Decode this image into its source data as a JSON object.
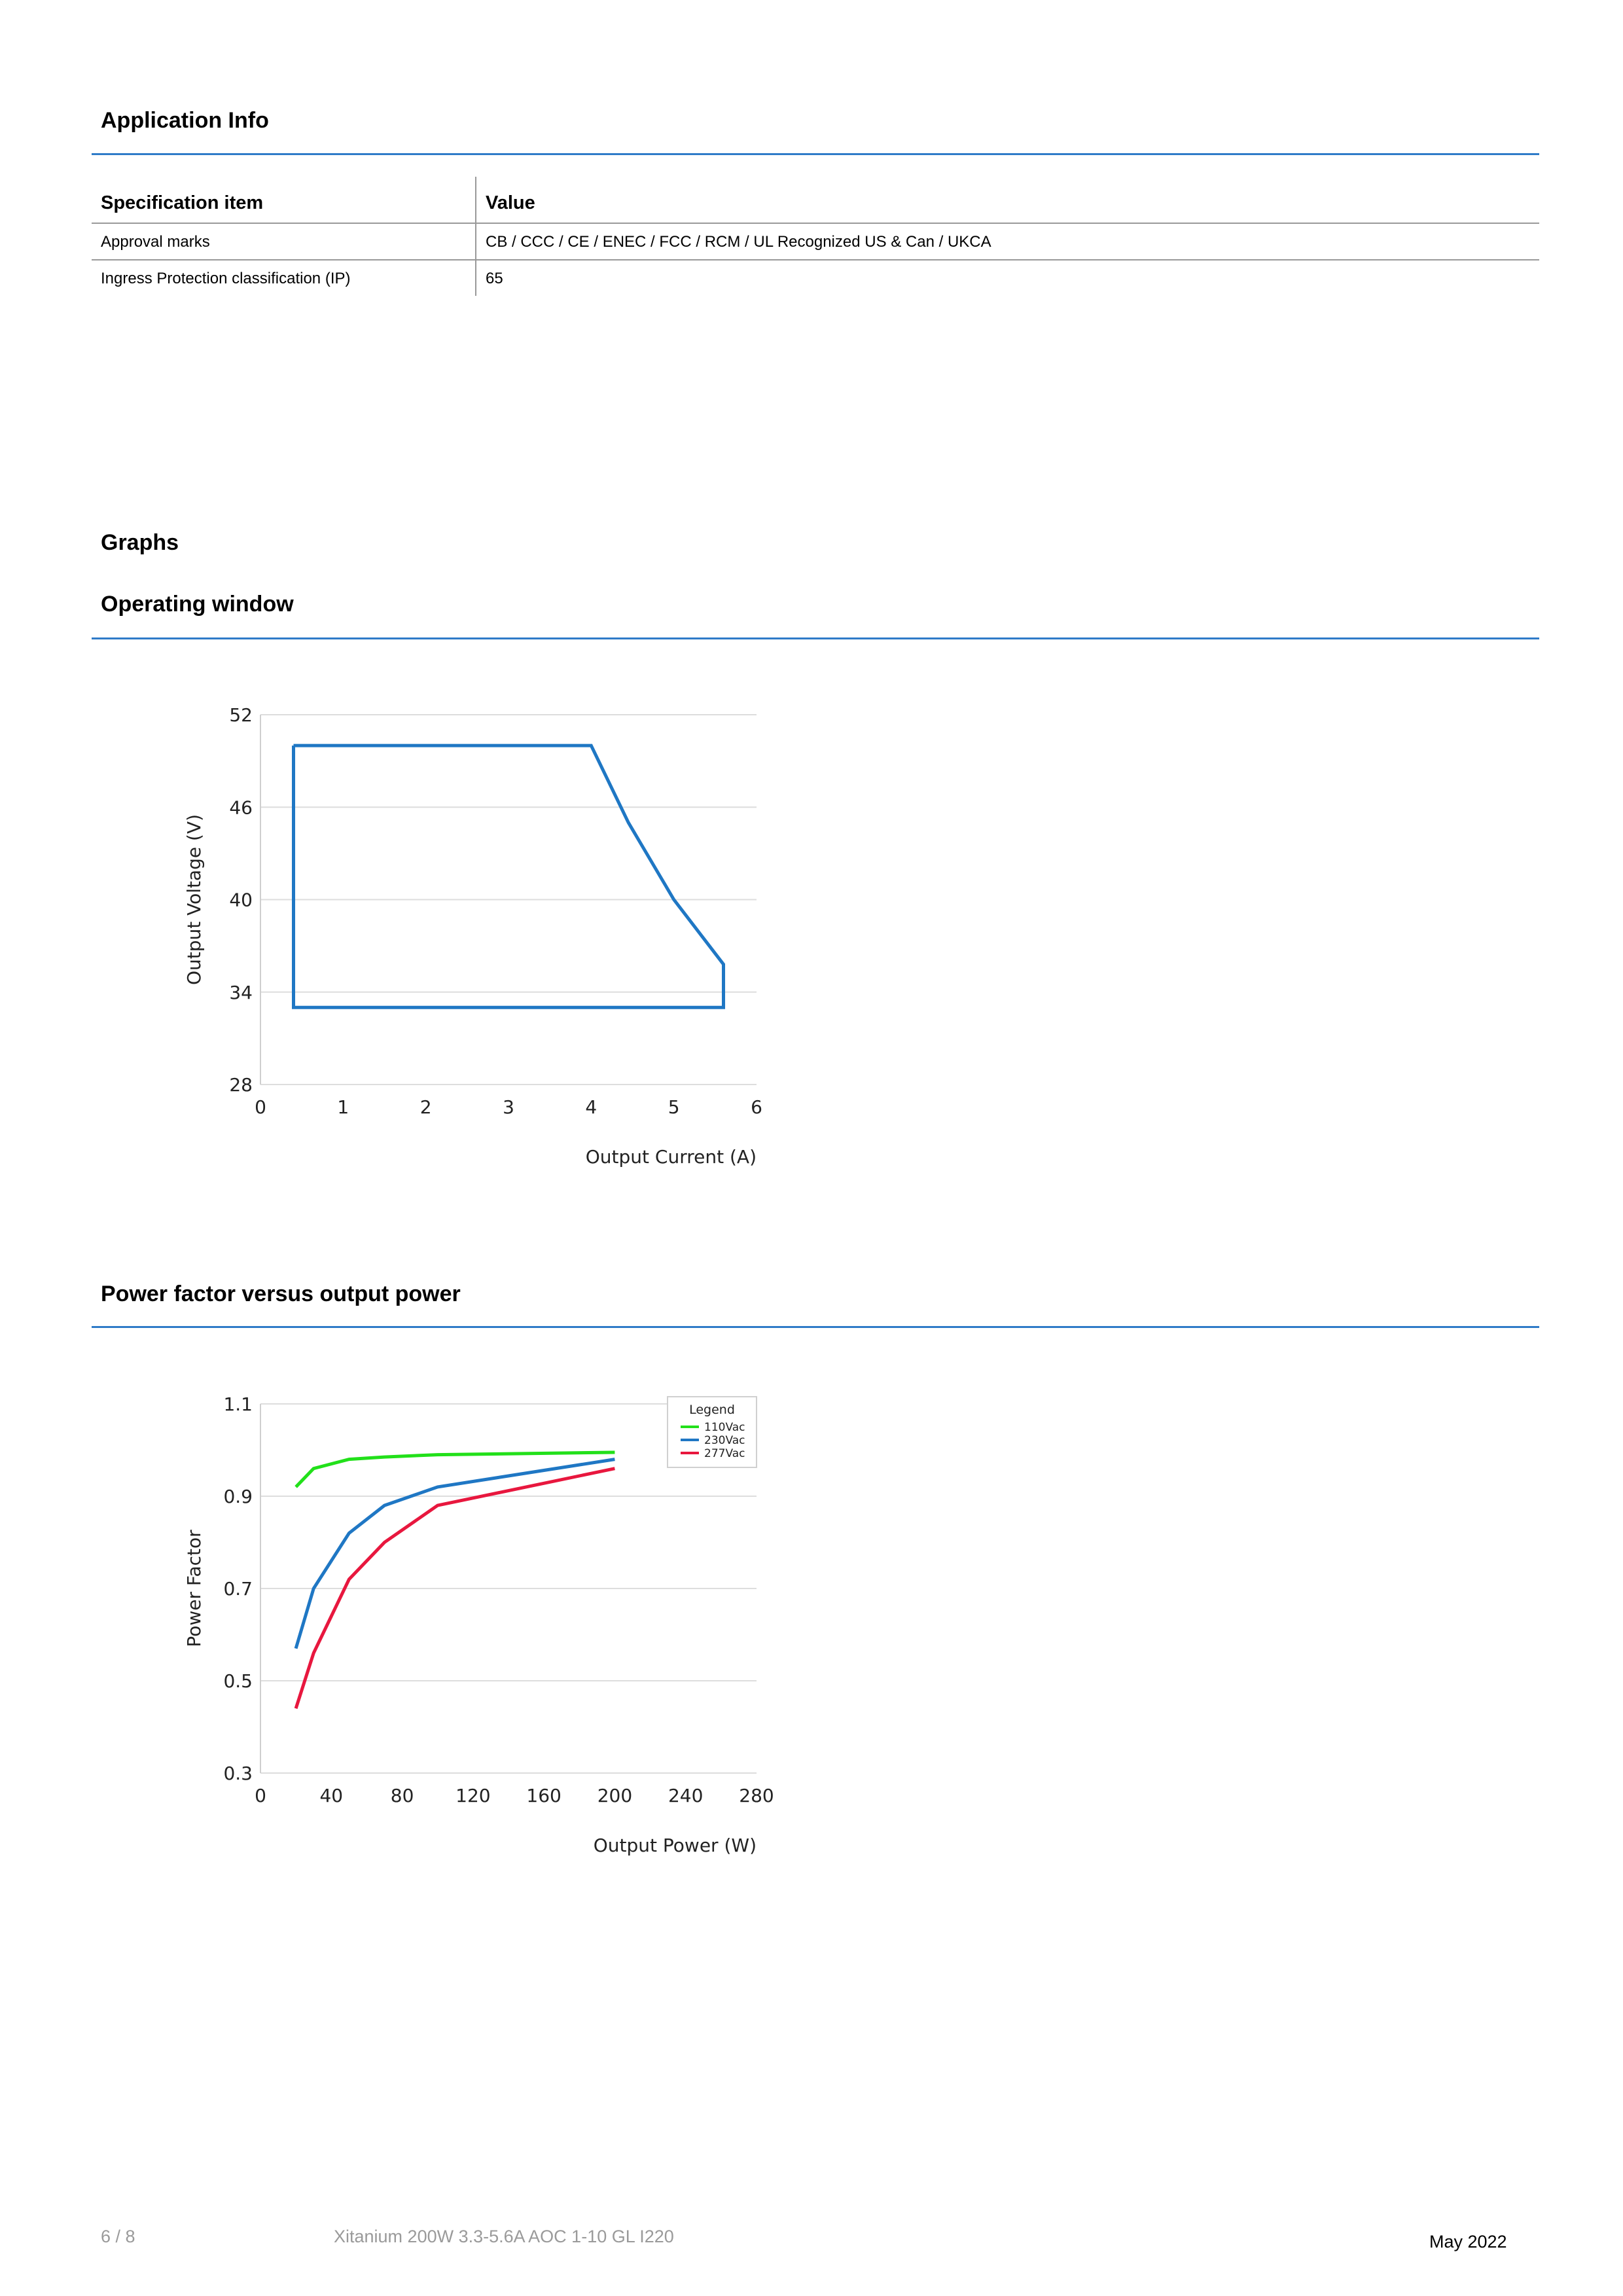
{
  "sections": {
    "application_info": "Application Info",
    "graphs": "Graphs",
    "operating_window": "Operating window",
    "power_factor": "Power factor versus output power"
  },
  "spec_table": {
    "headers": [
      "Specification item",
      "Value"
    ],
    "rows": [
      [
        "Approval marks",
        "CB / CCC / CE / ENEC / FCC / RCM / UL Recognized US & Can / UKCA"
      ],
      [
        "Ingress Protection classification (IP)",
        "65"
      ]
    ]
  },
  "chart_data": [
    {
      "type": "line",
      "title": "",
      "xlabel": "Output Current (A)",
      "ylabel": "Output Voltage (V)",
      "xlim": [
        0,
        6
      ],
      "ylim": [
        28,
        52
      ],
      "xticks": [
        0,
        1,
        2,
        3,
        4,
        5,
        6
      ],
      "yticks": [
        28,
        34,
        40,
        46,
        52
      ],
      "grid": true,
      "series": [
        {
          "color": "#1f77c4",
          "x": [
            0.4,
            4.0,
            4.45,
            5.0,
            5.6,
            5.6,
            0.4,
            0.4
          ],
          "y": [
            50,
            50,
            45,
            40,
            35.8,
            33,
            33,
            50
          ]
        }
      ]
    },
    {
      "type": "line",
      "title": "",
      "xlabel": "Output Power (W)",
      "ylabel": "Power Factor",
      "xlim": [
        0,
        280
      ],
      "ylim": [
        0.3,
        1.1
      ],
      "xticks": [
        0,
        40,
        80,
        120,
        160,
        200,
        240,
        280
      ],
      "yticks": [
        0.3,
        0.5,
        0.7,
        0.9,
        1.1
      ],
      "grid": true,
      "legend_title": "Legend",
      "legend_position": "top-right",
      "series": [
        {
          "name": "110Vac",
          "color": "#22e01a",
          "x": [
            20,
            30,
            50,
            70,
            100,
            200
          ],
          "y": [
            0.92,
            0.96,
            0.98,
            0.985,
            0.99,
            0.995
          ]
        },
        {
          "name": "230Vac",
          "color": "#1f77c4",
          "x": [
            20,
            30,
            50,
            70,
            100,
            200
          ],
          "y": [
            0.57,
            0.7,
            0.82,
            0.88,
            0.92,
            0.98
          ]
        },
        {
          "name": "277Vac",
          "color": "#e8173e",
          "x": [
            20,
            30,
            50,
            70,
            100,
            200
          ],
          "y": [
            0.44,
            0.56,
            0.72,
            0.8,
            0.88,
            0.96
          ]
        }
      ]
    }
  ],
  "footer": {
    "page": "6 / 8",
    "product": "Xitanium 200W 3.3-5.6A AOC 1-10 GL I220",
    "date": "May 2022"
  }
}
